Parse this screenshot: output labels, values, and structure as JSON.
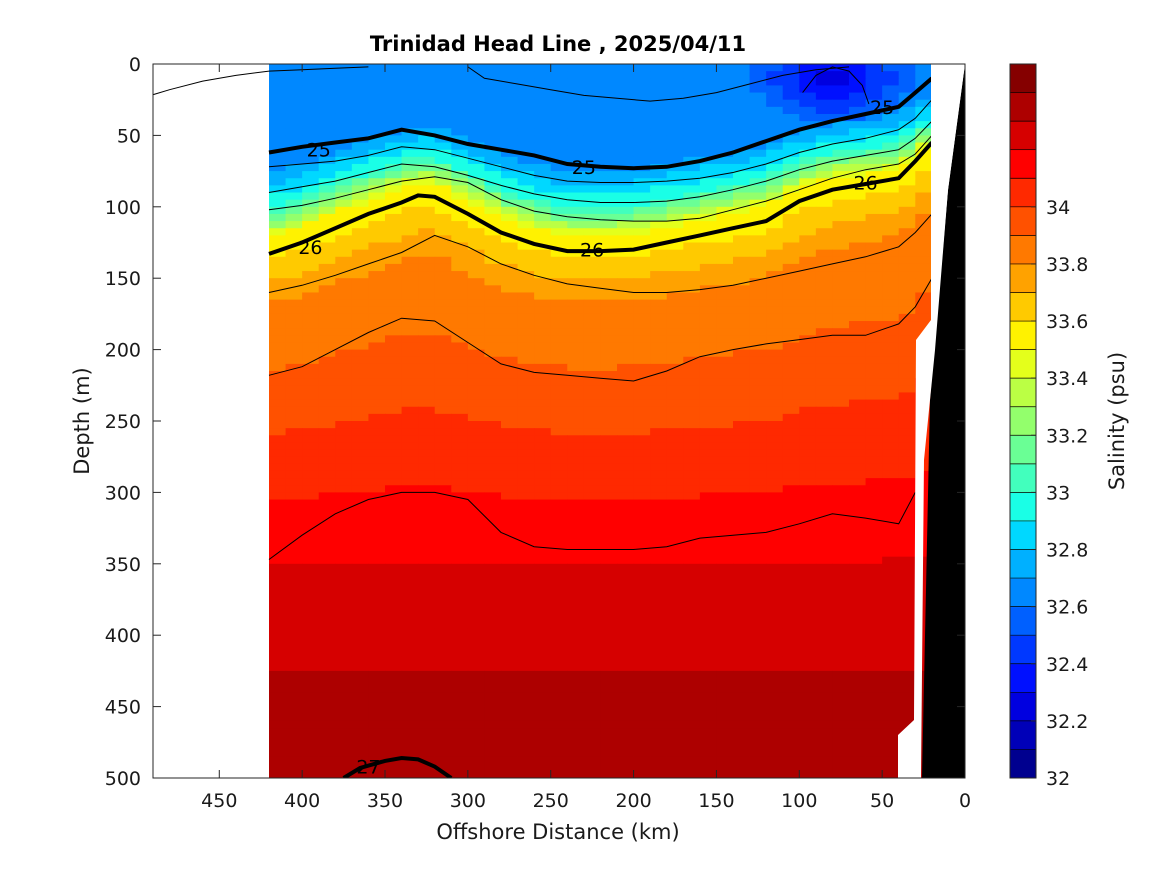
{
  "chart_data": {
    "type": "heatmap",
    "subtype": "filled-contour section",
    "title": "Trinidad Head Line , 2025/04/11",
    "xlabel": "Offshore Distance (km)",
    "ylabel": "Depth (m)",
    "xlim": [
      490,
      0
    ],
    "ylim": [
      500,
      0
    ],
    "x_direction": "reversed",
    "y_direction": "depth increasing downward",
    "xticks": [
      450,
      400,
      350,
      300,
      250,
      200,
      150,
      100,
      50,
      0
    ],
    "yticks": [
      0,
      50,
      100,
      150,
      200,
      250,
      300,
      350,
      400,
      450,
      500
    ],
    "colorbar": {
      "label": "Salinity (psu)",
      "range": [
        32,
        34.5
      ],
      "step": 0.1,
      "ticks": [
        32,
        32.2,
        32.4,
        32.6,
        32.8,
        33,
        33.2,
        33.4,
        33.6,
        33.8,
        34
      ],
      "tick_labels": [
        "32",
        "32.2",
        "32.4",
        "32.6",
        "32.8",
        "33",
        "33.2",
        "33.4",
        "33.6",
        "33.8",
        "34"
      ],
      "colormap": "jet",
      "colors": [
        "#00008f",
        "#0000b8",
        "#0000e0",
        "#0010ff",
        "#0038ff",
        "#0060ff",
        "#0088ff",
        "#00b0ff",
        "#00d8ff",
        "#1affe6",
        "#42ffbd",
        "#6aff95",
        "#93ff6c",
        "#bbff44",
        "#e4ff1b",
        "#fff200",
        "#ffca00",
        "#ffa200",
        "#ff7900",
        "#ff5100",
        "#ff2900",
        "#ff0000",
        "#d60000",
        "#ad0000",
        "#850000"
      ]
    },
    "data_extent_km": [
      420,
      20
    ],
    "salinity_levels_by_depth": [
      {
        "depth_m": 0,
        "salinity_psu": 32.6
      },
      {
        "depth_m": 50,
        "salinity_psu": 32.6
      },
      {
        "depth_m": 80,
        "salinity_psu": 33.0
      },
      {
        "depth_m": 100,
        "salinity_psu": 33.5
      },
      {
        "depth_m": 150,
        "salinity_psu": 33.8
      },
      {
        "depth_m": 250,
        "salinity_psu": 34.0
      },
      {
        "depth_m": 350,
        "salinity_psu": 34.2
      },
      {
        "depth_m": 500,
        "salinity_psu": 34.4
      }
    ],
    "fresh_core": {
      "x_km": 80,
      "depth_m": 10,
      "salinity_psu": 32.2
    },
    "density_contours": [
      {
        "label": "25",
        "x": [
          420,
          400,
          380,
          360,
          340,
          320,
          300,
          280,
          260,
          240,
          220,
          200,
          180,
          160,
          140,
          120,
          100,
          80,
          60,
          40,
          30,
          20
        ],
        "y": [
          62,
          58,
          55,
          52,
          46,
          50,
          56,
          60,
          64,
          70,
          72,
          73,
          72,
          68,
          62,
          54,
          46,
          40,
          35,
          30,
          20,
          10
        ],
        "label_positions": [
          {
            "x": 390,
            "y": 60
          },
          {
            "x": 230,
            "y": 72
          },
          {
            "x": 50,
            "y": 30
          }
        ]
      },
      {
        "label": "26",
        "x": [
          420,
          400,
          380,
          360,
          340,
          330,
          320,
          300,
          280,
          260,
          240,
          220,
          200,
          180,
          160,
          140,
          120,
          100,
          80,
          60,
          40,
          30,
          20
        ],
        "y": [
          133,
          125,
          115,
          105,
          97,
          92,
          93,
          105,
          118,
          126,
          131,
          131,
          130,
          125,
          120,
          115,
          110,
          96,
          88,
          84,
          80,
          68,
          55
        ],
        "label_positions": [
          {
            "x": 395,
            "y": 128
          },
          {
            "x": 225,
            "y": 130
          },
          {
            "x": 60,
            "y": 83
          }
        ]
      },
      {
        "label": "27",
        "x": [
          375,
          365,
          350,
          340,
          330,
          320,
          310
        ],
        "y": [
          500,
          493,
          488,
          486,
          487,
          492,
          500
        ],
        "label_positions": [
          {
            "x": 360,
            "y": 492
          }
        ]
      }
    ],
    "thin_contours": [
      {
        "x": [
          420,
          400,
          380,
          360,
          340,
          320,
          300,
          280,
          260,
          240,
          220,
          200,
          180,
          160,
          140,
          120,
          100,
          80,
          60,
          40,
          30,
          20
        ],
        "y": [
          72,
          70,
          68,
          64,
          58,
          60,
          66,
          72,
          78,
          82,
          83,
          83,
          82,
          80,
          76,
          70,
          62,
          56,
          52,
          46,
          38,
          25
        ]
      },
      {
        "x": [
          420,
          400,
          380,
          360,
          340,
          320,
          300,
          280,
          260,
          240,
          220,
          200,
          180,
          160,
          140,
          120,
          100,
          80,
          60,
          40,
          30,
          20
        ],
        "y": [
          90,
          86,
          82,
          76,
          70,
          72,
          78,
          85,
          91,
          95,
          97,
          97,
          96,
          93,
          88,
          82,
          74,
          68,
          64,
          60,
          52,
          40
        ]
      },
      {
        "x": [
          420,
          400,
          380,
          360,
          340,
          320,
          300,
          280,
          260,
          240,
          220,
          200,
          180,
          160,
          140,
          120,
          100,
          80,
          60,
          40,
          30,
          20
        ],
        "y": [
          102,
          99,
          94,
          88,
          82,
          79,
          83,
          95,
          103,
          107,
          109,
          110,
          110,
          108,
          102,
          96,
          88,
          80,
          74,
          70,
          63,
          50
        ]
      },
      {
        "x": [
          420,
          400,
          380,
          360,
          340,
          320,
          300,
          280,
          260,
          240,
          220,
          200,
          180,
          160,
          140,
          120,
          100,
          80,
          60,
          40,
          30,
          20
        ],
        "y": [
          160,
          155,
          148,
          140,
          132,
          120,
          128,
          140,
          148,
          154,
          157,
          160,
          160,
          158,
          155,
          150,
          145,
          140,
          135,
          128,
          118,
          105
        ]
      },
      {
        "x": [
          420,
          400,
          380,
          360,
          340,
          320,
          300,
          280,
          260,
          240,
          220,
          200,
          180,
          160,
          140,
          120,
          100,
          80,
          60,
          40,
          30,
          20
        ],
        "y": [
          218,
          212,
          200,
          188,
          178,
          180,
          195,
          210,
          216,
          218,
          220,
          222,
          215,
          205,
          200,
          196,
          193,
          190,
          190,
          182,
          170,
          150
        ]
      },
      {
        "x": [
          420,
          400,
          380,
          360,
          340,
          320,
          300,
          280,
          260,
          240,
          220,
          200,
          180,
          160,
          140,
          120,
          100,
          80,
          60,
          40,
          30
        ],
        "y": [
          347,
          330,
          315,
          305,
          300,
          300,
          305,
          328,
          338,
          340,
          340,
          340,
          338,
          332,
          330,
          328,
          322,
          315,
          318,
          322,
          300
        ]
      },
      {
        "x": [
          500,
          480,
          460,
          440,
          420,
          400,
          380,
          360
        ],
        "y": [
          25,
          18,
          12,
          8,
          5,
          4,
          3,
          2
        ]
      },
      {
        "x": [
          300,
          290,
          270,
          250,
          230,
          210,
          190,
          170,
          150,
          130,
          110,
          90,
          70
        ],
        "y": [
          2,
          10,
          14,
          18,
          22,
          24,
          26,
          24,
          20,
          14,
          8,
          4,
          2
        ]
      },
      {
        "x": [
          98,
          90,
          80,
          70,
          62,
          58
        ],
        "y": [
          20,
          8,
          2,
          5,
          15,
          28
        ]
      }
    ],
    "white_gaps": [
      {
        "x": [
          35,
          28
        ],
        "y_from": 470,
        "y_to": 500
      },
      {
        "x": [
          34,
          24
        ],
        "y_from": 180,
        "y_to": 500
      }
    ]
  }
}
